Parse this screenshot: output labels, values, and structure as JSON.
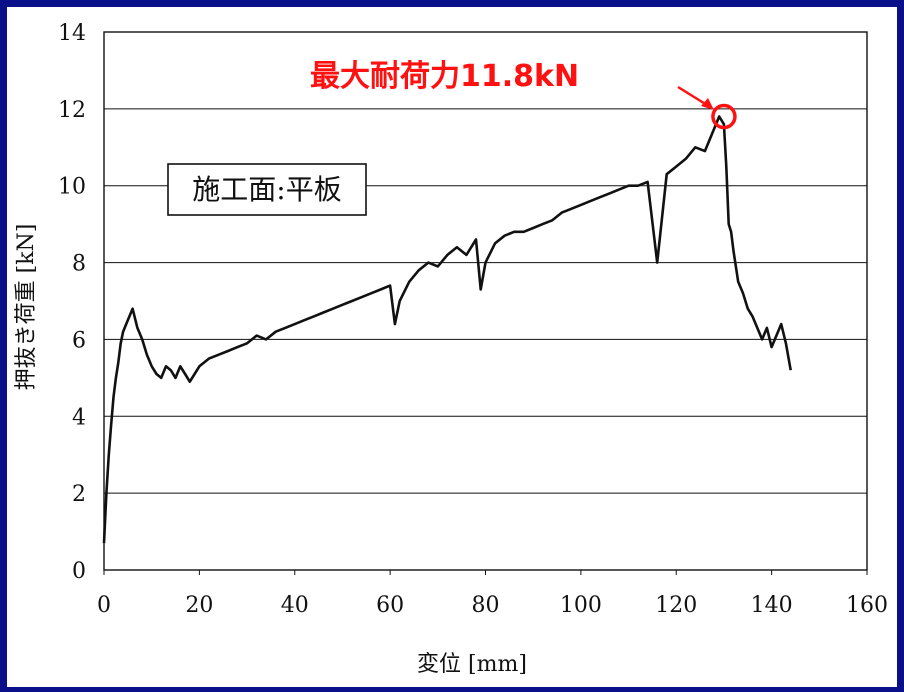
{
  "chart_data": {
    "type": "line",
    "xlabel": "変位 [mm]",
    "ylabel": "押抜き荷重 [kN]",
    "xlim": [
      0,
      160
    ],
    "ylim": [
      0,
      14
    ],
    "x_ticks": [
      0,
      20,
      40,
      60,
      80,
      100,
      120,
      140,
      160
    ],
    "y_ticks": [
      0,
      2,
      4,
      6,
      8,
      10,
      12,
      14
    ],
    "grid": "horizontal",
    "inset_label": "施工面:平板",
    "annotation": {
      "text": "最大耐荷力11.8kN",
      "color": "#ff1111",
      "point": [
        130,
        11.8
      ]
    },
    "series": [
      {
        "x": [
          0,
          0.5,
          1,
          1.5,
          2,
          2.5,
          3,
          3.5,
          4,
          5,
          6,
          7,
          8,
          9,
          10,
          11,
          12,
          13,
          14,
          15,
          16,
          17,
          18,
          19,
          20,
          22,
          24,
          26,
          28,
          30,
          32,
          34,
          36,
          38,
          40,
          42,
          44,
          46,
          48,
          50,
          52,
          54,
          56,
          58,
          60,
          61,
          62,
          64,
          66,
          68,
          70,
          72,
          74,
          76,
          78,
          79,
          80,
          82,
          84,
          86,
          88,
          90,
          92,
          94,
          96,
          98,
          100,
          102,
          104,
          106,
          108,
          110,
          112,
          114,
          116,
          118,
          120,
          122,
          124,
          126,
          128,
          129,
          130,
          130.5,
          131,
          131.5,
          132,
          133,
          134,
          135,
          136,
          137,
          138,
          139,
          140,
          141,
          142,
          143,
          144
        ],
        "y": [
          0.7,
          2.0,
          3.0,
          3.8,
          4.5,
          5.0,
          5.4,
          5.9,
          6.2,
          6.5,
          6.8,
          6.3,
          6.0,
          5.6,
          5.3,
          5.1,
          5.0,
          5.3,
          5.2,
          5.0,
          5.3,
          5.1,
          4.9,
          5.1,
          5.3,
          5.5,
          5.6,
          5.7,
          5.8,
          5.9,
          6.1,
          6.0,
          6.2,
          6.3,
          6.4,
          6.5,
          6.6,
          6.7,
          6.8,
          6.9,
          7.0,
          7.1,
          7.2,
          7.3,
          7.4,
          6.4,
          7.0,
          7.5,
          7.8,
          8.0,
          7.9,
          8.2,
          8.4,
          8.2,
          8.6,
          7.3,
          8.0,
          8.5,
          8.7,
          8.8,
          8.8,
          8.9,
          9.0,
          9.1,
          9.3,
          9.4,
          9.5,
          9.6,
          9.7,
          9.8,
          9.9,
          10.0,
          10.0,
          10.1,
          8.0,
          10.3,
          10.5,
          10.7,
          11.0,
          10.9,
          11.5,
          11.8,
          11.6,
          10.5,
          9.0,
          8.8,
          8.3,
          7.5,
          7.2,
          6.8,
          6.6,
          6.3,
          6.0,
          6.3,
          5.8,
          6.1,
          6.4,
          5.9,
          5.2
        ]
      }
    ]
  }
}
